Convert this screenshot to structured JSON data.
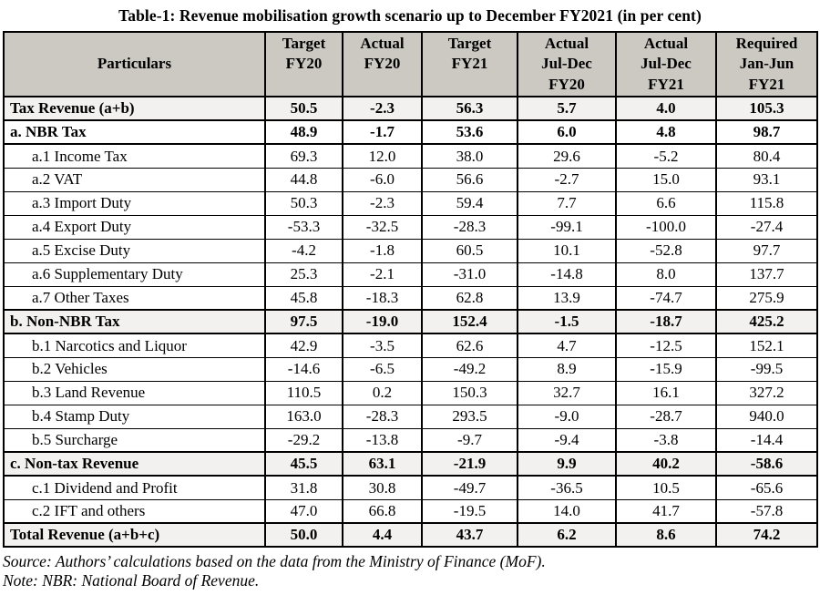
{
  "title": "Table-1: Revenue mobilisation growth scenario up to December FY2021 (in per cent)",
  "table": {
    "columns": [
      "Particulars",
      "Target\nFY20",
      "Actual\nFY20",
      "Target\nFY21",
      "Actual\nJul-Dec\nFY20",
      "Actual\nJul-Dec\nFY21",
      "Required\nJan-Jun\nFY21"
    ],
    "rows": [
      {
        "label": "Tax Revenue (a+b)",
        "values": [
          "50.5",
          "-2.3",
          "56.3",
          "5.7",
          "4.0",
          "105.3"
        ],
        "style": "total"
      },
      {
        "label": "a. NBR Tax",
        "values": [
          "48.9",
          "-1.7",
          "53.6",
          "6.0",
          "4.8",
          "98.7"
        ],
        "style": "section"
      },
      {
        "label": "a.1 Income Tax",
        "values": [
          "69.3",
          "12.0",
          "38.0",
          "29.6",
          "-5.2",
          "80.4"
        ],
        "style": "detail"
      },
      {
        "label": "a.2 VAT",
        "values": [
          "44.8",
          "-6.0",
          "56.6",
          "-2.7",
          "15.0",
          "93.1"
        ],
        "style": "detail"
      },
      {
        "label": "a.3 Import Duty",
        "values": [
          "50.3",
          "-2.3",
          "59.4",
          "7.7",
          "6.6",
          "115.8"
        ],
        "style": "detail"
      },
      {
        "label": "a.4 Export Duty",
        "values": [
          "-53.3",
          "-32.5",
          "-28.3",
          "-99.1",
          "-100.0",
          "-27.4"
        ],
        "style": "detail"
      },
      {
        "label": "a.5 Excise Duty",
        "values": [
          "-4.2",
          "-1.8",
          "60.5",
          "10.1",
          "-52.8",
          "97.7"
        ],
        "style": "detail"
      },
      {
        "label": "a.6 Supplementary Duty",
        "values": [
          "25.3",
          "-2.1",
          "-31.0",
          "-14.8",
          "8.0",
          "137.7"
        ],
        "style": "detail"
      },
      {
        "label": "a.7 Other Taxes",
        "values": [
          "45.8",
          "-18.3",
          "62.8",
          "13.9",
          "-74.7",
          "275.9"
        ],
        "style": "detail"
      },
      {
        "label": "b. Non-NBR Tax",
        "values": [
          "97.5",
          "-19.0",
          "152.4",
          "-1.5",
          "-18.7",
          "425.2"
        ],
        "style": "total"
      },
      {
        "label": "b.1 Narcotics and Liquor",
        "values": [
          "42.9",
          "-3.5",
          "62.6",
          "4.7",
          "-12.5",
          "152.1"
        ],
        "style": "detail"
      },
      {
        "label": "b.2 Vehicles",
        "values": [
          "-14.6",
          "-6.5",
          "-49.2",
          "8.9",
          "-15.9",
          "-99.5"
        ],
        "style": "detail"
      },
      {
        "label": "b.3 Land Revenue",
        "values": [
          "110.5",
          "0.2",
          "150.3",
          "32.7",
          "16.1",
          "327.2"
        ],
        "style": "detail"
      },
      {
        "label": "b.4 Stamp Duty",
        "values": [
          "163.0",
          "-28.3",
          "293.5",
          "-9.0",
          "-28.7",
          "940.0"
        ],
        "style": "detail"
      },
      {
        "label": "b.5 Surcharge",
        "values": [
          "-29.2",
          "-13.8",
          "-9.7",
          "-9.4",
          "-3.8",
          "-14.4"
        ],
        "style": "detail"
      },
      {
        "label": "c. Non-tax Revenue",
        "values": [
          "45.5",
          "63.1",
          "-21.9",
          "9.9",
          "40.2",
          "-58.6"
        ],
        "style": "total"
      },
      {
        "label": "c.1 Dividend and Profit",
        "values": [
          "31.8",
          "30.8",
          "-49.7",
          "-36.5",
          "10.5",
          "-65.6"
        ],
        "style": "detail"
      },
      {
        "label": "c.2 IFT and others",
        "values": [
          "47.0",
          "66.8",
          "-19.5",
          "14.0",
          "41.7",
          "-57.8"
        ],
        "style": "detail"
      },
      {
        "label": "Total Revenue (a+b+c)",
        "values": [
          "50.0",
          "4.4",
          "43.7",
          "6.2",
          "8.6",
          "74.2"
        ],
        "style": "total"
      }
    ]
  },
  "notes": {
    "source": "Source: Authors’ calculations based on the data from the Ministry of Finance (MoF).",
    "note": "Note: NBR: National Board of Revenue."
  },
  "colors": {
    "header_bg": "#ccc9c3",
    "section_row_bg": "#f3f1ef",
    "border": "#000000",
    "text": "#000000"
  }
}
